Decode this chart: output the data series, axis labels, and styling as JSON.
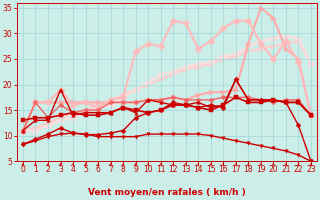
{
  "background_color": "#cceee8",
  "grid_color": "#aadddd",
  "xlabel": "Vent moyen/en rafales ( km/h )",
  "xlim": [
    -0.5,
    23.5
  ],
  "ylim": [
    5,
    36
  ],
  "yticks": [
    5,
    10,
    15,
    20,
    25,
    30,
    35
  ],
  "xticks": [
    0,
    1,
    2,
    3,
    4,
    5,
    6,
    7,
    8,
    9,
    10,
    11,
    12,
    13,
    14,
    15,
    16,
    17,
    18,
    19,
    20,
    21,
    22,
    23
  ],
  "series": [
    {
      "x": [
        0,
        1,
        2,
        3,
        4,
        5,
        6,
        7,
        8,
        9,
        10,
        11,
        12,
        13,
        14,
        15,
        16,
        17,
        18,
        19,
        20,
        21,
        22,
        23
      ],
      "y": [
        8.3,
        9.0,
        9.8,
        10.3,
        10.5,
        10.3,
        9.8,
        9.8,
        9.8,
        9.8,
        10.3,
        10.3,
        10.3,
        10.3,
        10.3,
        10.0,
        9.5,
        9.0,
        8.5,
        8.0,
        7.5,
        7.0,
        6.2,
        5.0
      ],
      "color": "#cc0000",
      "marker": "v",
      "lw": 1.0,
      "ms": 2.5,
      "zorder": 4
    },
    {
      "x": [
        0,
        1,
        2,
        3,
        4,
        5,
        6,
        7,
        8,
        9,
        10,
        11,
        12,
        13,
        14,
        15,
        16,
        17,
        18,
        19,
        20,
        21,
        22,
        23
      ],
      "y": [
        8.3,
        9.3,
        10.3,
        11.5,
        10.5,
        10.2,
        10.2,
        10.5,
        11.0,
        13.5,
        14.5,
        15.0,
        16.5,
        16.0,
        15.5,
        16.0,
        15.5,
        21.0,
        17.0,
        17.0,
        17.0,
        16.5,
        12.0,
        5.0
      ],
      "color": "#cc0000",
      "marker": "D",
      "lw": 1.0,
      "ms": 2.5,
      "zorder": 4
    },
    {
      "x": [
        0,
        1,
        2,
        3,
        4,
        5,
        6,
        7,
        8,
        9,
        10,
        11,
        12,
        13,
        14,
        15,
        16,
        17,
        18,
        19,
        20,
        21,
        22,
        23
      ],
      "y": [
        13.0,
        13.5,
        13.5,
        14.0,
        14.5,
        14.0,
        14.0,
        14.5,
        15.5,
        15.0,
        14.5,
        15.0,
        16.0,
        16.0,
        15.5,
        15.0,
        16.0,
        17.5,
        16.5,
        16.5,
        17.0,
        16.5,
        16.5,
        14.0
      ],
      "color": "#cc0000",
      "marker": "s",
      "lw": 1.2,
      "ms": 2.5,
      "zorder": 4
    },
    {
      "x": [
        0,
        1,
        2,
        3,
        4,
        5,
        6,
        7,
        8,
        9,
        10,
        11,
        12,
        13,
        14,
        15,
        16,
        17,
        18,
        19,
        20,
        21,
        22,
        23
      ],
      "y": [
        11.0,
        13.0,
        13.0,
        19.0,
        14.0,
        14.5,
        14.5,
        14.5,
        15.5,
        14.5,
        17.0,
        16.5,
        16.0,
        16.0,
        16.5,
        15.5,
        16.0,
        21.0,
        17.0,
        17.0,
        17.0,
        16.5,
        16.5,
        14.0
      ],
      "color": "#cc0000",
      "marker": "^",
      "lw": 1.0,
      "ms": 2.5,
      "zorder": 4
    },
    {
      "x": [
        0,
        1,
        2,
        3,
        4,
        5,
        6,
        7,
        8,
        9,
        10,
        11,
        12,
        13,
        14,
        15,
        16,
        17,
        18,
        19,
        20,
        21,
        22,
        23
      ],
      "y": [
        11.0,
        16.5,
        13.5,
        16.0,
        14.5,
        15.0,
        15.0,
        16.5,
        16.5,
        16.5,
        17.0,
        17.0,
        17.5,
        17.0,
        17.0,
        17.0,
        17.5,
        17.5,
        17.5,
        17.0,
        16.5,
        17.0,
        17.0,
        14.0
      ],
      "color": "#ee6666",
      "marker": "D",
      "lw": 1.0,
      "ms": 2.5,
      "zorder": 3
    },
    {
      "x": [
        0,
        1,
        2,
        3,
        4,
        5,
        6,
        7,
        8,
        9,
        10,
        11,
        12,
        13,
        14,
        15,
        16,
        17,
        18,
        19,
        20,
        21,
        22,
        23
      ],
      "y": [
        11.0,
        16.5,
        16.5,
        16.5,
        16.5,
        16.5,
        16.5,
        16.5,
        16.5,
        16.5,
        17.0,
        17.0,
        17.5,
        17.0,
        18.0,
        18.5,
        18.5,
        19.0,
        28.0,
        35.0,
        33.0,
        27.0,
        25.0,
        14.0
      ],
      "color": "#ffaaaa",
      "marker": ">",
      "lw": 1.5,
      "ms": 3.5,
      "zorder": 2
    },
    {
      "x": [
        0,
        1,
        2,
        3,
        4,
        5,
        6,
        7,
        8,
        9,
        10,
        11,
        12,
        13,
        14,
        15,
        16,
        17,
        18,
        19,
        20,
        21,
        22,
        23
      ],
      "y": [
        11.0,
        16.5,
        16.5,
        19.0,
        16.0,
        16.5,
        15.5,
        17.0,
        17.5,
        26.5,
        28.0,
        27.5,
        32.5,
        32.0,
        27.0,
        28.5,
        31.0,
        32.5,
        32.5,
        28.0,
        25.0,
        28.5,
        24.5,
        14.0
      ],
      "color": "#ffbbbb",
      "marker": "D",
      "lw": 1.5,
      "ms": 3.5,
      "zorder": 2
    },
    {
      "x": [
        0,
        1,
        2,
        3,
        4,
        5,
        6,
        7,
        8,
        9,
        10,
        11,
        12,
        13,
        14,
        15,
        16,
        17,
        18,
        19,
        20,
        21,
        22,
        23
      ],
      "y": [
        11.0,
        11.5,
        12.5,
        13.5,
        14.5,
        15.0,
        16.0,
        17.0,
        18.0,
        19.0,
        20.0,
        21.0,
        22.0,
        23.0,
        23.5,
        24.0,
        25.0,
        25.5,
        26.5,
        27.0,
        27.5,
        28.0,
        28.5,
        24.0
      ],
      "color": "#ffcccc",
      "marker": ">",
      "lw": 1.5,
      "ms": 3.5,
      "zorder": 1
    },
    {
      "x": [
        0,
        1,
        2,
        3,
        4,
        5,
        6,
        7,
        8,
        9,
        10,
        11,
        12,
        13,
        14,
        15,
        16,
        17,
        18,
        19,
        20,
        21,
        22,
        23
      ],
      "y": [
        11.0,
        11.0,
        12.0,
        13.0,
        13.5,
        14.5,
        15.5,
        16.0,
        17.5,
        19.0,
        20.5,
        22.0,
        22.5,
        23.5,
        24.0,
        24.5,
        25.5,
        26.0,
        27.5,
        28.5,
        29.0,
        29.5,
        29.0,
        24.0
      ],
      "color": "#ffdddd",
      "marker": "D",
      "lw": 1.5,
      "ms": 3.5,
      "zorder": 1
    }
  ],
  "arrow_angles": [
    10,
    15,
    22,
    30,
    30,
    25,
    28,
    25,
    28,
    28,
    30,
    30,
    32,
    32,
    30,
    32,
    32,
    30,
    32,
    32,
    32,
    32,
    30,
    15
  ],
  "arrow_color": "#cc0000",
  "label_fontsize": 6.5,
  "tick_fontsize": 5.5
}
